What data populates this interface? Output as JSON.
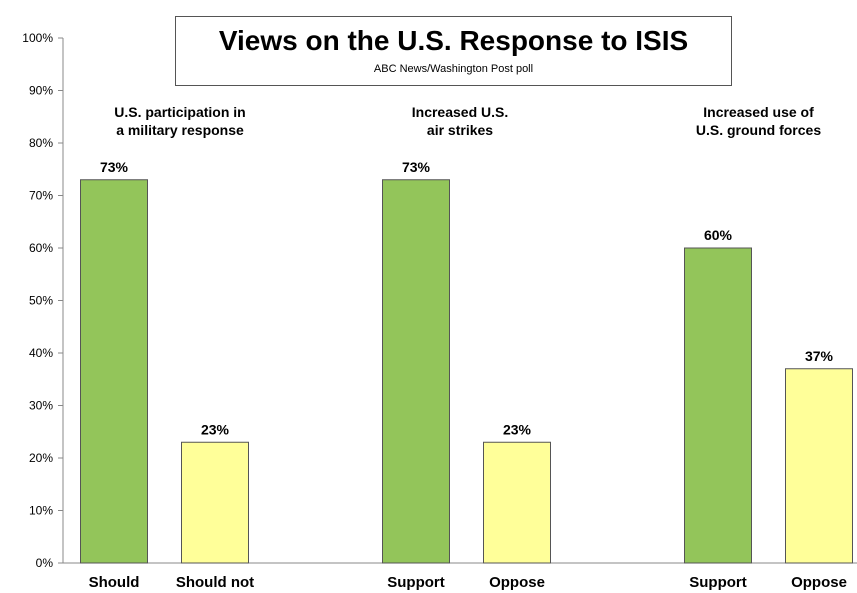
{
  "chart_data": {
    "type": "bar",
    "title": "Views on the U.S. Response to ISIS",
    "subtitle": "ABC News/Washington  Post poll",
    "ylim": [
      0,
      100
    ],
    "yticks": [
      "0%",
      "10%",
      "20%",
      "30%",
      "40%",
      "50%",
      "60%",
      "70%",
      "80%",
      "90%",
      "100%"
    ],
    "grid": false,
    "groups": [
      {
        "label_lines": [
          "U.S. participation in",
          "a military response"
        ],
        "categories": [
          "Should",
          "Should not"
        ],
        "values": [
          73,
          23
        ],
        "value_labels": [
          "73%",
          "23%"
        ]
      },
      {
        "label_lines": [
          "Increased U.S.",
          "air strikes"
        ],
        "categories": [
          "Support",
          "Oppose"
        ],
        "values": [
          73,
          23
        ],
        "value_labels": [
          "73%",
          "23%"
        ]
      },
      {
        "label_lines": [
          "Increased use of",
          "U.S. ground forces"
        ],
        "categories": [
          "Support",
          "Oppose"
        ],
        "values": [
          60,
          37
        ],
        "value_labels": [
          "60%",
          "37%"
        ]
      }
    ],
    "colors": {
      "support": "#93c55a",
      "oppose": "#ffff99",
      "bar_border": "#555555"
    }
  }
}
